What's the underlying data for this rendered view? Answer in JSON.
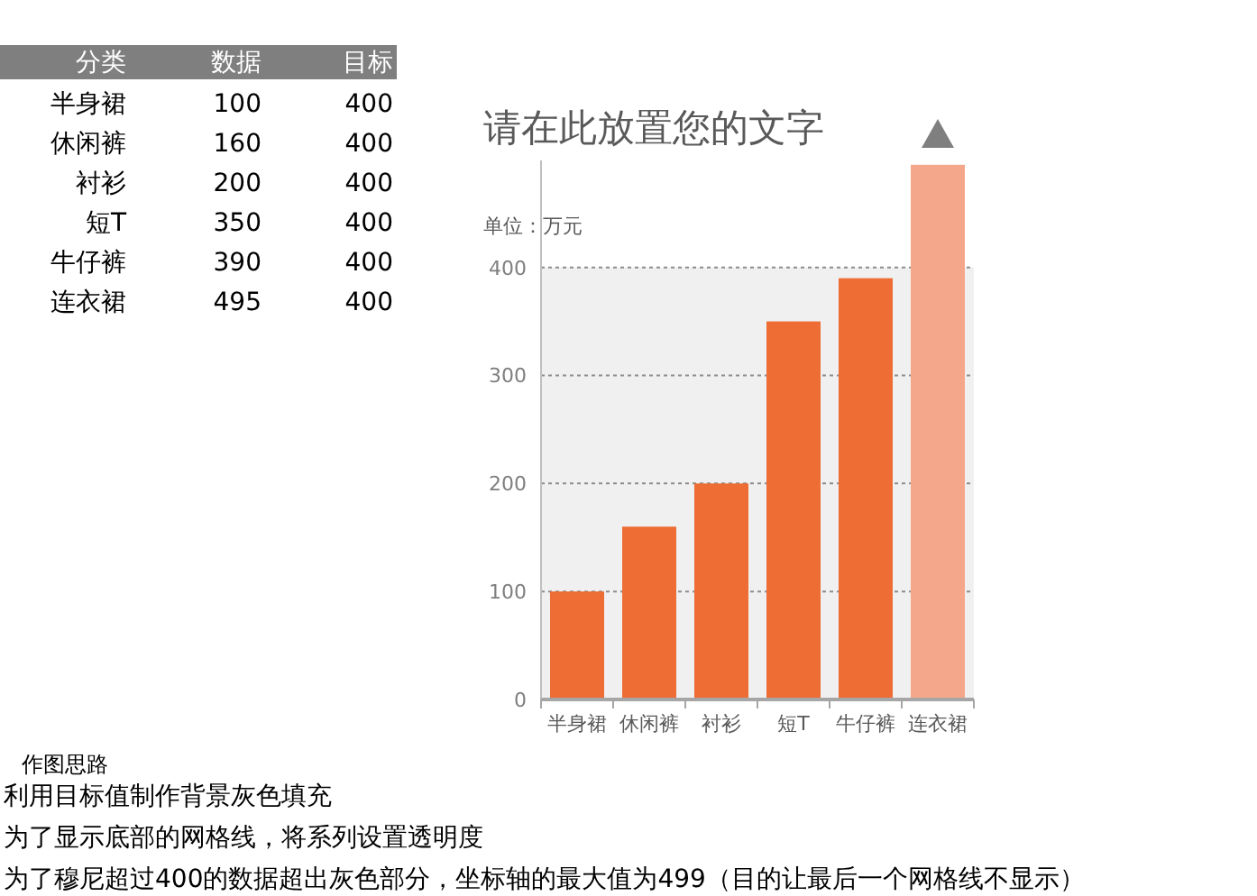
{
  "chart_data": [
    {
      "type": "other",
      "categories": [
        "半身裙",
        "休闲裤",
        "衬衫",
        "短T",
        "牛仔裤",
        "连衣裙"
      ],
      "legend_title": "分类",
      "series": [
        {
          "name": "数据",
          "values": [
            100,
            160,
            200,
            350,
            390,
            495
          ]
        },
        {
          "name": "目标",
          "values": [
            400,
            400,
            400,
            400,
            400,
            400
          ]
        }
      ],
      "data_labels": true
    },
    {
      "type": "bar",
      "title": "请在此放置您的文字",
      "subtitle": "单位：万元",
      "categories": [
        "半身裙",
        "休闲裤",
        "衬衫",
        "短T",
        "牛仔裤",
        "连衣裙"
      ],
      "colors": [
        "#ed6d35",
        "#ed6d35",
        "#ed6d35",
        "#ed6d35",
        "#ed6d35",
        "#f4a78a"
      ],
      "values": [
        100,
        160,
        200,
        350,
        390,
        495
      ],
      "bands": [
        {
          "axis": "y",
          "from": 0,
          "to": 400,
          "color": "#f0f0f0"
        }
      ],
      "ylim": [
        0,
        499
      ],
      "yticks": [
        0,
        100,
        200,
        300,
        400
      ],
      "grid": "y",
      "annotations": [
        "作图思路",
        "利用目标值制作背景灰色填充",
        "为了显示底部的网格线，将系列设置透明度",
        "为了穆尼超过400的数据超出灰色部分，坐标轴的最大值为499（目的让最后一个网格线不显示）"
      ]
    }
  ]
}
